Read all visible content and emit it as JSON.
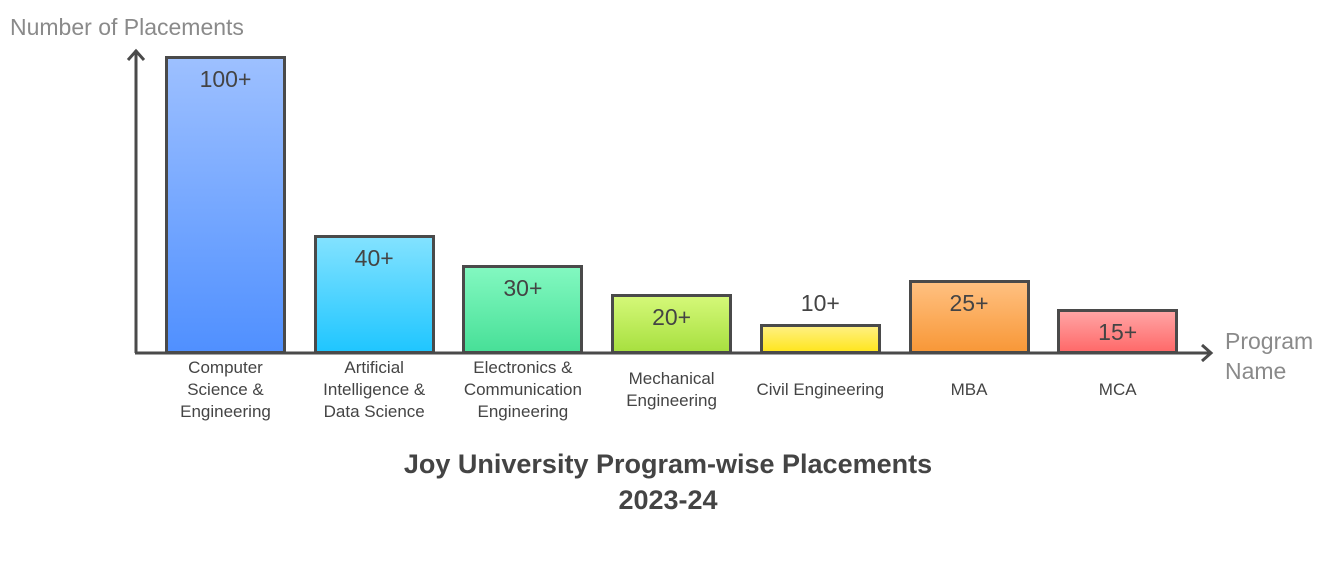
{
  "chart_data": {
    "type": "bar",
    "title": "Joy University Program-wise Placements 2023-24",
    "xlabel": "Program Name",
    "ylabel": "Number of Placements",
    "ylim": [
      0,
      100
    ],
    "grid": false,
    "categories": [
      "Computer Science & Engineering",
      "Artificial Intelligence & Data Science",
      "Electronics & Communication Engineering",
      "Mechanical Engineering",
      "Civil Engineering",
      "MBA",
      "MCA"
    ],
    "values": [
      100,
      40,
      30,
      20,
      10,
      25,
      15
    ],
    "data_labels": [
      "100+",
      "40+",
      "30+",
      "20+",
      "10+",
      "25+",
      "15+"
    ],
    "colors": [
      [
        "#9dc0ff",
        "#5090ff"
      ],
      [
        "#82e2ff",
        "#20c6ff"
      ],
      [
        "#82f8c0",
        "#48e098"
      ],
      [
        "#d4f878",
        "#a8e040"
      ],
      [
        "#fff080",
        "#ffe620"
      ],
      [
        "#ffc080",
        "#f89838"
      ],
      [
        "#ffa4a4",
        "#ff6a6a"
      ]
    ]
  }
}
